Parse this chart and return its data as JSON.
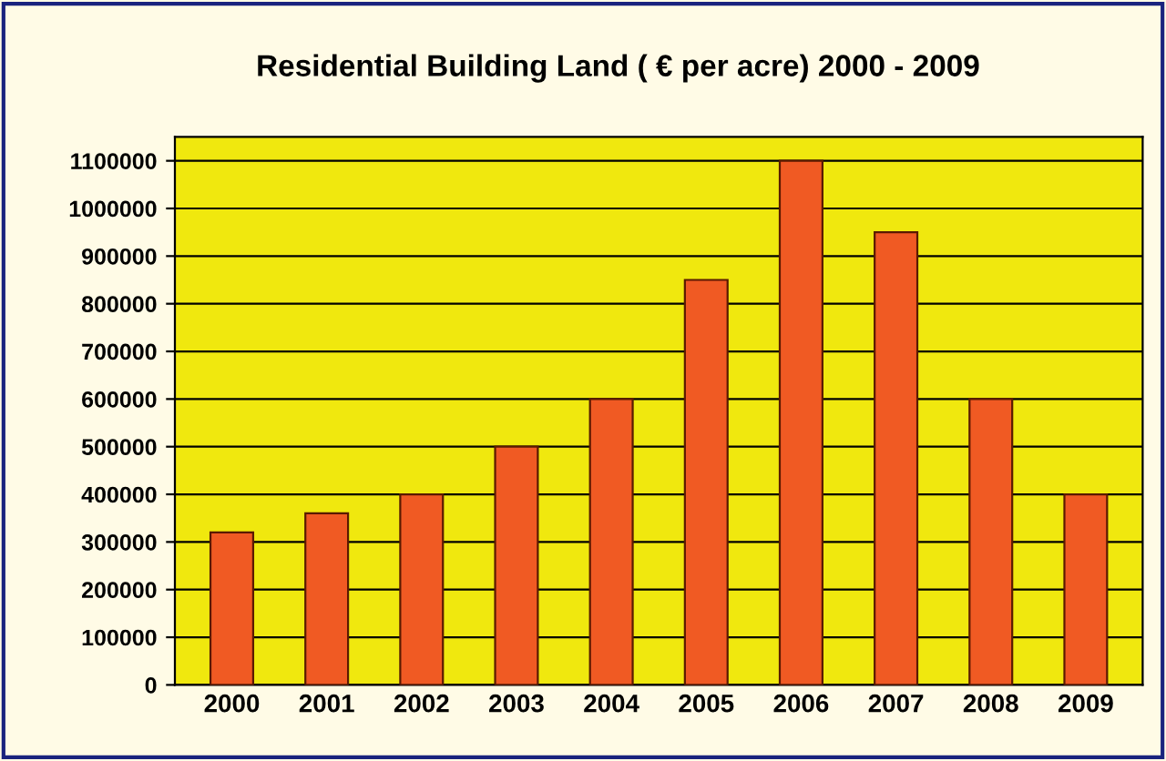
{
  "chart_data": {
    "type": "bar",
    "title": "Residential Building Land ( € per acre) 2000 - 2009",
    "categories": [
      "2000",
      "2001",
      "2002",
      "2003",
      "2004",
      "2005",
      "2006",
      "2007",
      "2008",
      "2009"
    ],
    "values": [
      320000,
      360000,
      400000,
      500000,
      600000,
      850000,
      1100000,
      950000,
      600000,
      400000
    ],
    "color": "#f05a23",
    "ylim": [
      0,
      1150000
    ],
    "yticks": [
      0,
      100000,
      200000,
      300000,
      400000,
      500000,
      600000,
      700000,
      800000,
      900000,
      1000000,
      1100000
    ],
    "grid": "y"
  }
}
